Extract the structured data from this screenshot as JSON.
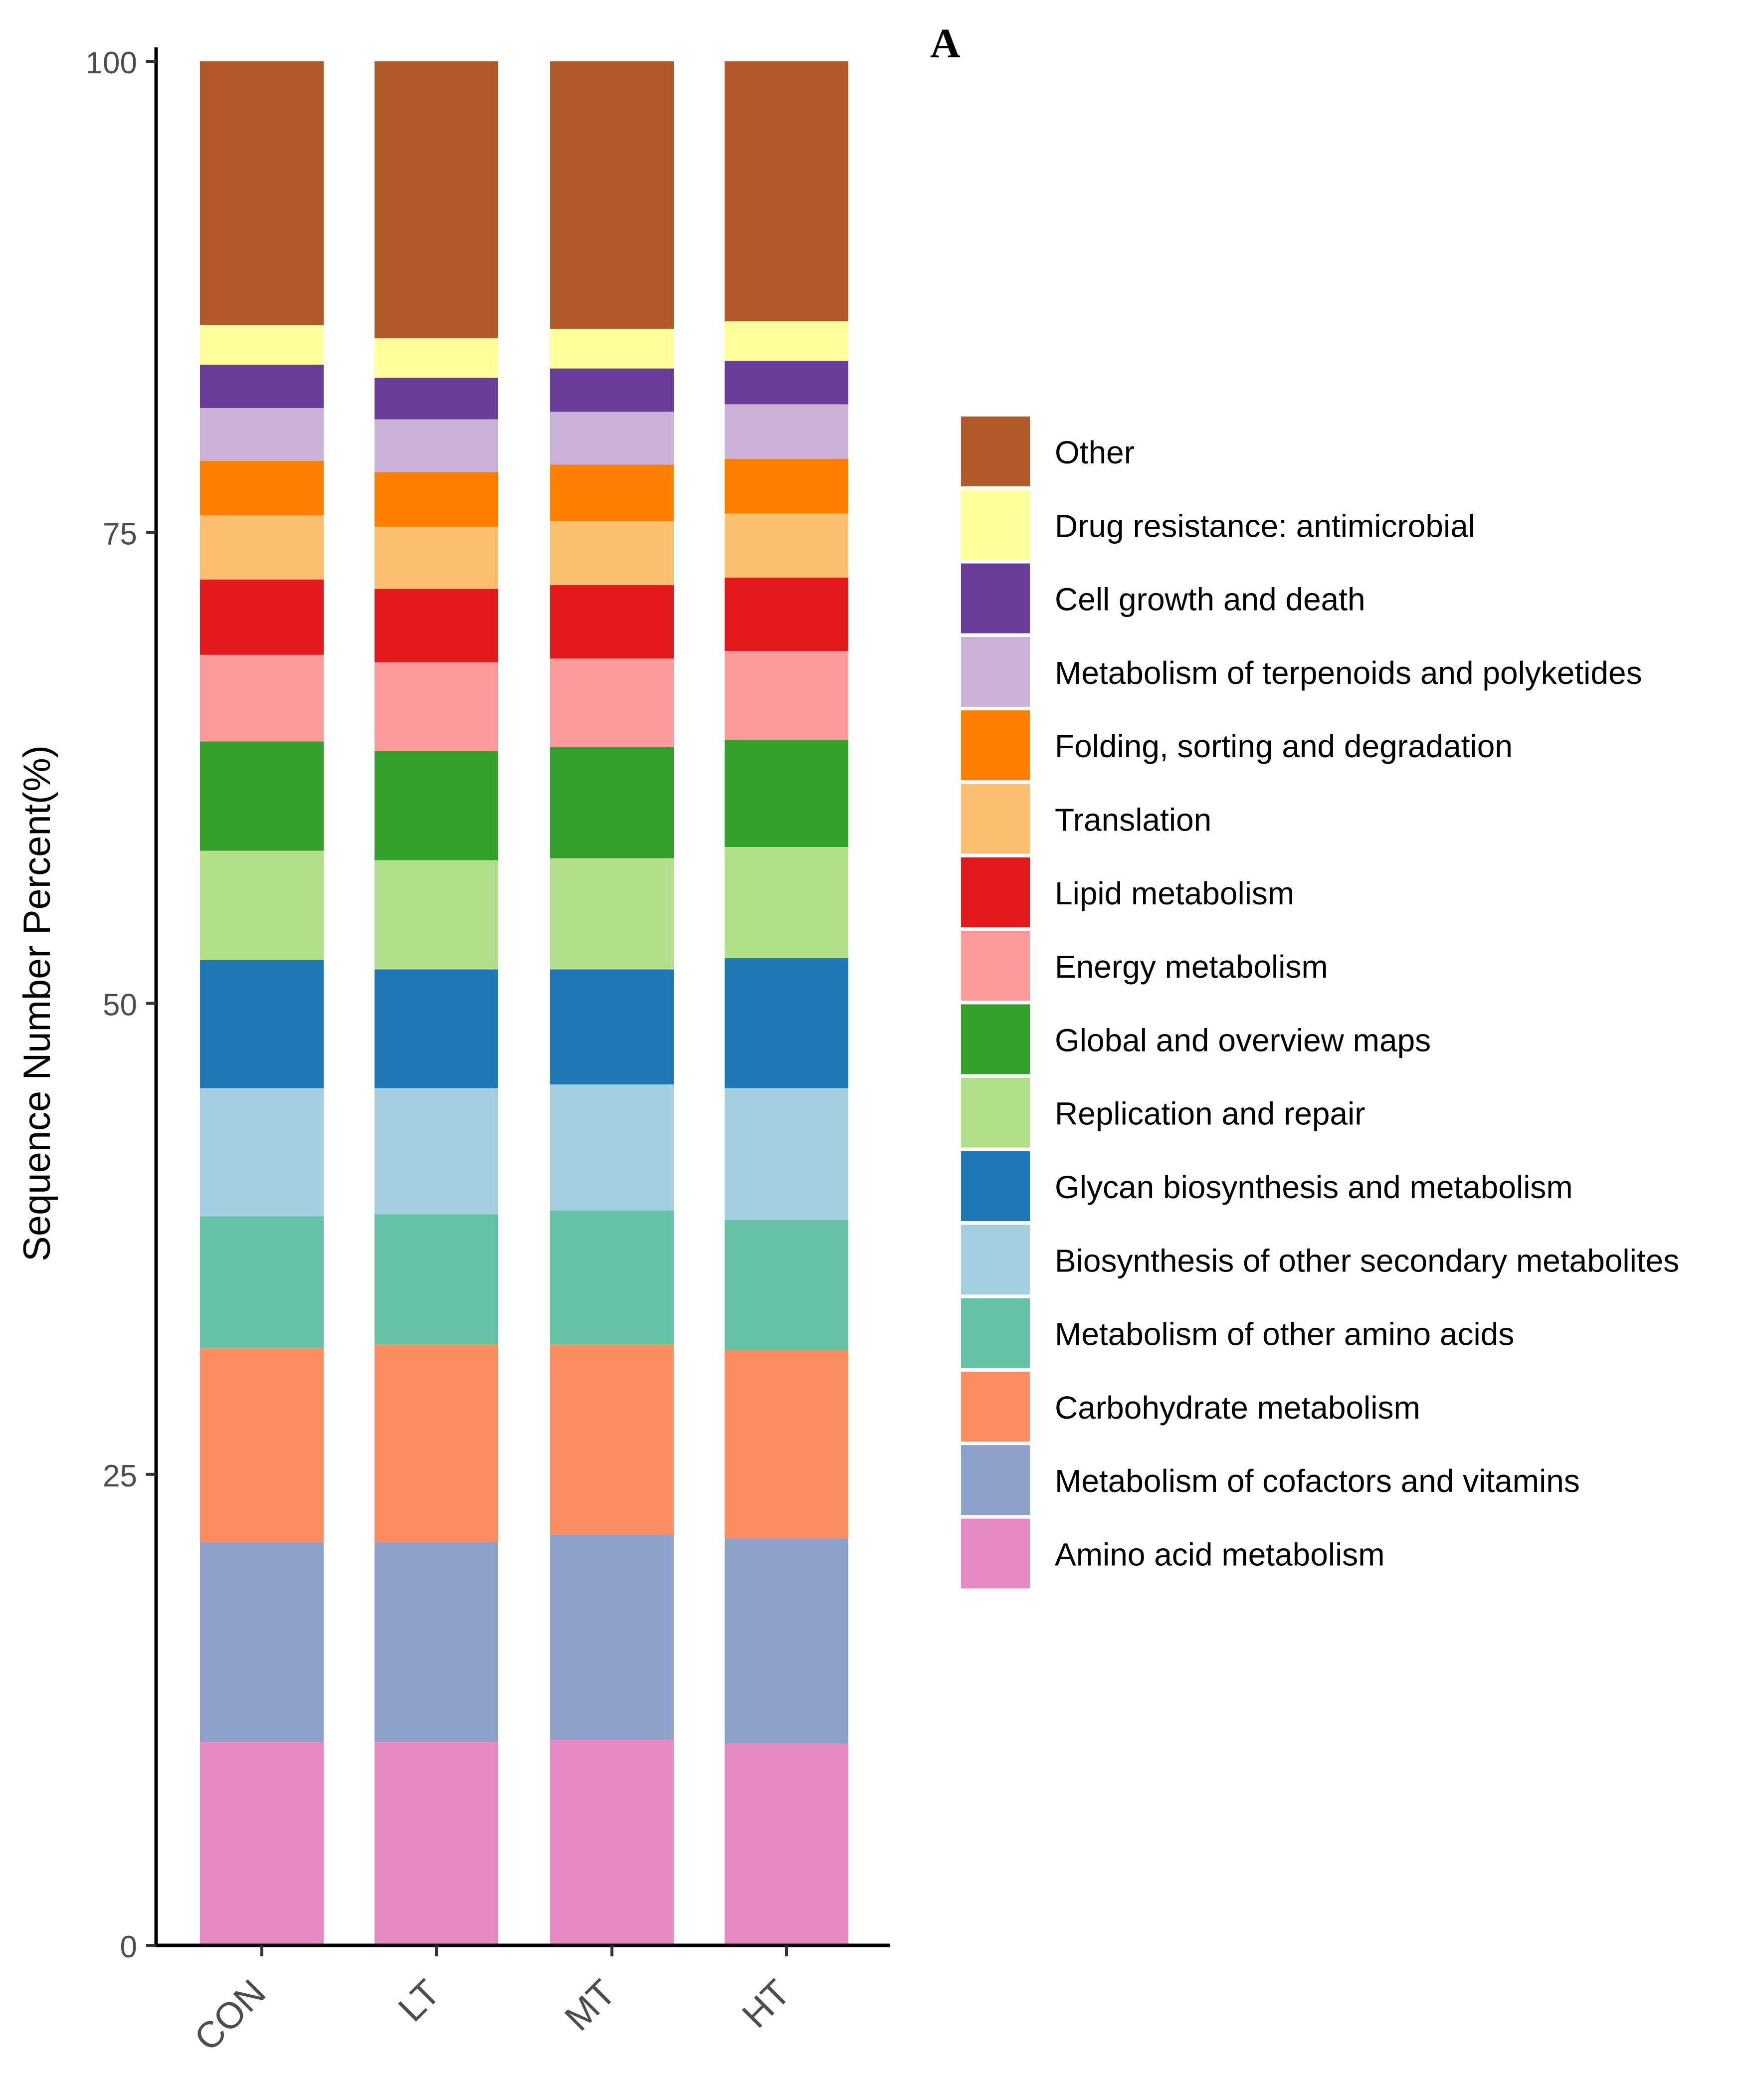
{
  "panel_label": "A",
  "chart_data": {
    "type": "bar",
    "stacked": true,
    "title": "",
    "xlabel": "",
    "ylabel": "Sequence Number Percent(%)",
    "ylim": [
      0,
      100
    ],
    "yticks": [
      0,
      25,
      50,
      75,
      100
    ],
    "categories": [
      "CON",
      "LT",
      "MT",
      "HT"
    ],
    "legend_position": "right",
    "series": [
      {
        "name": "Amino acid metabolism",
        "color": "#E78AC3",
        "values": [
          10.8,
          10.8,
          10.9,
          10.7
        ]
      },
      {
        "name": "Metabolism of cofactors and vitamins",
        "color": "#8DA0CB",
        "values": [
          10.6,
          10.6,
          10.9,
          10.9
        ]
      },
      {
        "name": "Carbohydrate metabolism",
        "color": "#FC8D62",
        "values": [
          10.3,
          10.5,
          10.1,
          10.0
        ]
      },
      {
        "name": "Metabolism of other amino acids",
        "color": "#66C2A5",
        "values": [
          7.0,
          6.9,
          7.1,
          6.9
        ]
      },
      {
        "name": "Biosynthesis of other secondary metabolites",
        "color": "#A6CEE3",
        "values": [
          6.8,
          6.7,
          6.7,
          7.0
        ]
      },
      {
        "name": "Glycan biosynthesis and metabolism",
        "color": "#1F78B4",
        "values": [
          6.8,
          6.3,
          6.1,
          6.9
        ]
      },
      {
        "name": "Replication and repair",
        "color": "#B2DF8A",
        "values": [
          5.8,
          5.8,
          5.9,
          5.9
        ]
      },
      {
        "name": "Global and overview maps",
        "color": "#33A02C",
        "values": [
          5.8,
          5.8,
          5.9,
          5.7
        ]
      },
      {
        "name": "Energy metabolism",
        "color": "#FB9A99",
        "values": [
          4.6,
          4.7,
          4.7,
          4.7
        ]
      },
      {
        "name": "Lipid metabolism",
        "color": "#E31A1C",
        "values": [
          4.0,
          3.9,
          3.9,
          3.9
        ]
      },
      {
        "name": "Translation",
        "color": "#FDBF6F",
        "values": [
          3.4,
          3.3,
          3.4,
          3.4
        ]
      },
      {
        "name": "Folding, sorting and degradation",
        "color": "#FF7F00",
        "values": [
          2.9,
          2.9,
          3.0,
          2.9
        ]
      },
      {
        "name": "Metabolism of terpenoids and polyketides",
        "color": "#CAB2D6",
        "values": [
          2.8,
          2.8,
          2.8,
          2.9
        ]
      },
      {
        "name": "Cell growth and death",
        "color": "#6A3D9A",
        "values": [
          2.3,
          2.2,
          2.3,
          2.3
        ]
      },
      {
        "name": "Drug resistance: antimicrobial",
        "color": "#FFFF99",
        "values": [
          2.1,
          2.1,
          2.1,
          2.1
        ]
      },
      {
        "name": "Other",
        "color": "#B15928",
        "values": [
          14.0,
          14.7,
          14.2,
          13.8
        ]
      }
    ]
  }
}
